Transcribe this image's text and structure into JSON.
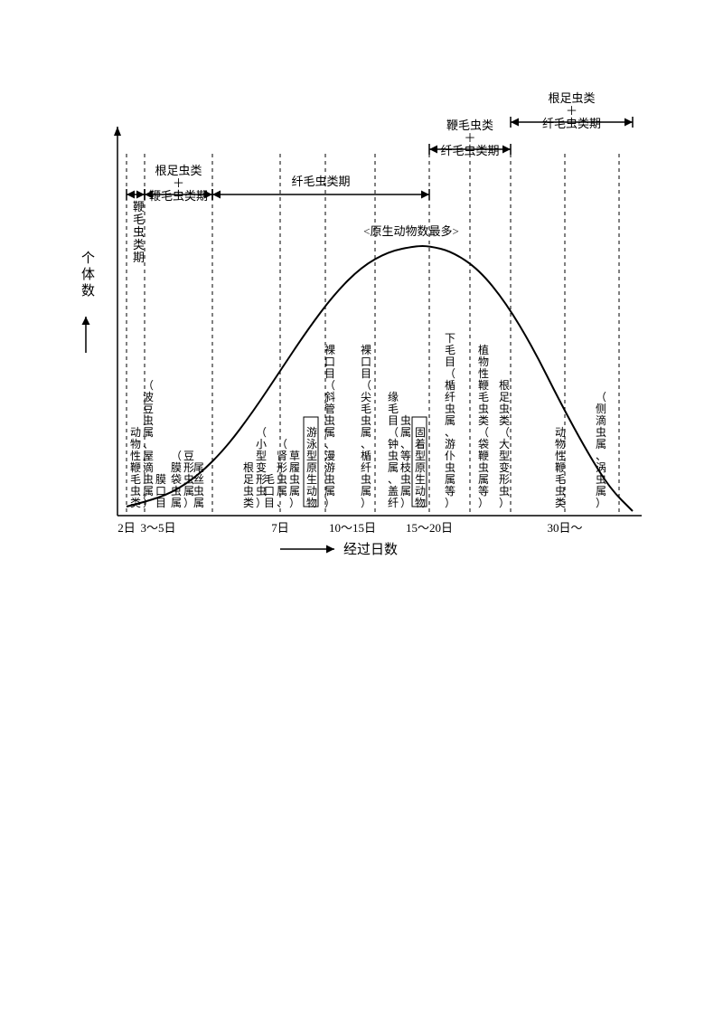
{
  "chart": {
    "type": "line-bell",
    "background_color": "#ffffff",
    "curve_color": "#000000",
    "dash_color": "#000000",
    "axis_color": "#000000",
    "font_family": "SimSun",
    "axis": {
      "y_label": "个体数",
      "x_label": "经过日数",
      "x_ticks": [
        "2日",
        "3～5日",
        "",
        "7日",
        "10～15日",
        "15～20日",
        "",
        "30日～",
        ""
      ],
      "x_tick_pos": [
        80,
        115,
        175,
        250,
        330,
        415,
        475,
        565,
        625
      ]
    },
    "peak_label": "<原生动物数最多>",
    "periods_top": [
      {
        "start": 80,
        "end": 100,
        "label": "鞭毛虫类期",
        "vertical": true
      },
      {
        "start": 100,
        "end": 175,
        "label": "根足虫类\n＋\n鞭毛虫类期",
        "vertical": false
      },
      {
        "start": 175,
        "end": 415,
        "label": "纤毛虫类期",
        "vertical": false
      },
      {
        "start": 415,
        "end": 505,
        "label": "鞭毛虫类\n＋\n纤毛虫类期",
        "vertical": false
      },
      {
        "start": 505,
        "end": 640,
        "label": "根足虫类\n＋\n纤毛虫类期",
        "vertical": false
      }
    ],
    "vertical_annotations": [
      {
        "x": 90,
        "lines": [
          "动物性鞭毛虫类",
          "（波豆虫属、屋滴虫属）"
        ]
      },
      {
        "x": 118,
        "lines": [
          "膜口目"
        ],
        "header": true
      },
      {
        "x": 135,
        "lines": [
          "（膜袋虫属",
          "豆形虫属）"
        ]
      },
      {
        "x": 160,
        "lines": [
          "尾丝虫属"
        ]
      },
      {
        "x": 215,
        "lines": [
          "根足虫类",
          "（小型变形虫）"
        ]
      },
      {
        "x": 238,
        "lines": [
          "毛口目",
          "（肾形虫属、",
          "草履虫属）"
        ]
      },
      {
        "x": 285,
        "lines": [
          "游泳型原生动物"
        ],
        "boxed": true
      },
      {
        "x": 305,
        "lines": [
          "裸口目（斜管虫属、漫游虫属）"
        ]
      },
      {
        "x": 345,
        "lines": [
          "裸口目（尖毛虫属、楯纤虫属）"
        ]
      },
      {
        "x": 375,
        "lines": [
          "缘毛目（钟虫属、盖纤",
          "虫属、等枝虫属）"
        ]
      },
      {
        "x": 405,
        "lines": [
          "固着型原生动物"
        ],
        "boxed": true
      },
      {
        "x": 438,
        "lines": [
          "下毛目（楯纤虫属、游仆虫属等）"
        ]
      },
      {
        "x": 475,
        "lines": [
          "植物性鞭毛虫类（袋鞭虫属等）"
        ]
      },
      {
        "x": 498,
        "lines": [
          "根足虫类（大型变形虫）"
        ]
      },
      {
        "x": 560,
        "lines": [
          "动物性鞭毛虫类"
        ]
      },
      {
        "x": 605,
        "lines": [
          "（侧滴虫属、涡虫属）"
        ]
      }
    ],
    "dash_x": [
      80,
      100,
      175,
      250,
      300,
      355,
      415,
      460,
      505,
      565,
      625
    ],
    "curve_points": [
      [
        80,
        460
      ],
      [
        100,
        455
      ],
      [
        130,
        445
      ],
      [
        160,
        425
      ],
      [
        190,
        395
      ],
      [
        220,
        355
      ],
      [
        250,
        310
      ],
      [
        280,
        265
      ],
      [
        310,
        225
      ],
      [
        340,
        195
      ],
      [
        370,
        178
      ],
      [
        400,
        172
      ],
      [
        415,
        172
      ],
      [
        440,
        178
      ],
      [
        470,
        198
      ],
      [
        500,
        235
      ],
      [
        530,
        285
      ],
      [
        560,
        345
      ],
      [
        590,
        400
      ],
      [
        615,
        440
      ],
      [
        640,
        465
      ]
    ],
    "baseline_y": 470,
    "top_y": 60
  }
}
